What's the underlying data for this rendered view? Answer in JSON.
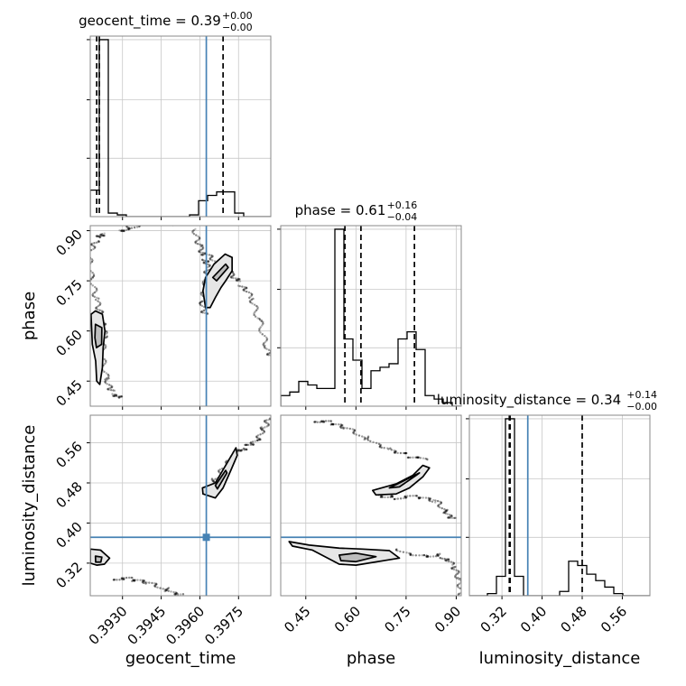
{
  "chart_data": {
    "type": "corner",
    "parameters": [
      "geocent_time",
      "phase",
      "luminosity_distance"
    ],
    "titles": [
      {
        "parameter": "geocent_time",
        "prefix": "geocent_time = 0.39",
        "plus": "+0.00",
        "minus": "−0.00"
      },
      {
        "parameter": "phase",
        "prefix": "phase = 0.61",
        "plus": "+0.16",
        "minus": "−0.04"
      },
      {
        "parameter": "luminosity_distance",
        "prefix": "luminosity_distance = 0.34",
        "plus": "+0.14",
        "minus": "−0.00"
      }
    ],
    "ranges": {
      "geocent_time": [
        0.39175,
        0.39875
      ],
      "phase": [
        0.375,
        0.915
      ],
      "luminosity_distance": [
        0.255,
        0.615
      ]
    },
    "ticks": {
      "geocent_time": [
        0.393,
        0.3945,
        0.396,
        0.3975
      ],
      "phase": [
        0.45,
        0.6,
        0.75,
        0.9
      ],
      "luminosity_distance": [
        0.32,
        0.4,
        0.48,
        0.56
      ]
    },
    "tick_labels": {
      "geocent_time": [
        "0.3930",
        "0.3945",
        "0.3960",
        "0.3975"
      ],
      "phase": [
        "0.45",
        "0.60",
        "0.75",
        "0.90"
      ],
      "luminosity_distance": [
        "0.32",
        "0.40",
        "0.48",
        "0.56"
      ]
    },
    "truths": {
      "geocent_time": 0.39625,
      "phase": null,
      "luminosity_distance": 0.3715
    },
    "quantiles": {
      "geocent_time": [
        0.392,
        0.3921,
        0.3969
      ],
      "phase": [
        0.567,
        0.615,
        0.775
      ],
      "luminosity_distance": [
        0.3347,
        0.3362,
        0.48
      ]
    },
    "histograms": {
      "geocent_time": {
        "edges": [
          0.39175,
          0.3921,
          0.39245,
          0.3928,
          0.39315,
          0.3935,
          0.39385,
          0.3942,
          0.39455,
          0.3949,
          0.39525,
          0.3956,
          0.39595,
          0.3963,
          0.39665,
          0.397,
          0.39735,
          0.3977,
          0.39805,
          0.3984,
          0.39875
        ],
        "counts": [
          0.15,
          1.0,
          0.02,
          0.01,
          0,
          0,
          0,
          0,
          0,
          0,
          0,
          0.01,
          0.09,
          0.12,
          0.14,
          0.14,
          0.02,
          0,
          0,
          0
        ]
      },
      "phase": {
        "edges": [
          0.375,
          0.402,
          0.429,
          0.456,
          0.483,
          0.51,
          0.537,
          0.564,
          0.591,
          0.618,
          0.645,
          0.672,
          0.699,
          0.726,
          0.753,
          0.78,
          0.807,
          0.834,
          0.861,
          0.888,
          0.915
        ],
        "counts": [
          0.06,
          0.08,
          0.14,
          0.12,
          0.1,
          0.1,
          1.0,
          0.38,
          0.26,
          0.1,
          0.2,
          0.22,
          0.24,
          0.38,
          0.42,
          0.32,
          0.06,
          0.04,
          0.02,
          0
        ]
      },
      "luminosity_distance": {
        "edges": [
          0.255,
          0.273,
          0.291,
          0.309,
          0.327,
          0.345,
          0.363,
          0.381,
          0.399,
          0.417,
          0.435,
          0.453,
          0.471,
          0.489,
          0.507,
          0.525,
          0.543,
          0.561,
          0.579,
          0.597,
          0.615
        ],
        "counts": [
          0,
          0,
          0.01,
          0.09,
          0.82,
          0.09,
          0,
          0,
          0,
          0,
          0.02,
          0.16,
          0.14,
          0.1,
          0.07,
          0.04,
          0.01,
          0,
          0,
          0
        ]
      }
    },
    "contours": {
      "phase_vs_geocent_time": [
        {
          "level": "outer",
          "points": [
            [
              0.39178,
              0.65
            ],
            [
              0.39195,
              0.66
            ],
            [
              0.39222,
              0.65
            ],
            [
              0.39232,
              0.6
            ],
            [
              0.39225,
              0.55
            ],
            [
              0.39222,
              0.49
            ],
            [
              0.39212,
              0.44
            ],
            [
              0.392,
              0.45
            ],
            [
              0.39196,
              0.51
            ],
            [
              0.39183,
              0.56
            ]
          ]
        },
        {
          "level": "inner",
          "points": [
            [
              0.39195,
              0.62
            ],
            [
              0.3922,
              0.61
            ],
            [
              0.39219,
              0.56
            ],
            [
              0.39199,
              0.55
            ],
            [
              0.39193,
              0.58
            ]
          ]
        },
        {
          "level": "outer",
          "points": [
            [
              0.39612,
              0.72
            ],
            [
              0.39622,
              0.76
            ],
            [
              0.39655,
              0.8
            ],
            [
              0.39698,
              0.83
            ],
            [
              0.39725,
              0.82
            ],
            [
              0.39725,
              0.78
            ],
            [
              0.397,
              0.75
            ],
            [
              0.39682,
              0.73
            ],
            [
              0.3966,
              0.7
            ],
            [
              0.3964,
              0.67
            ],
            [
              0.39622,
              0.67
            ]
          ]
        },
        {
          "level": "inner",
          "points": [
            [
              0.3965,
              0.76
            ],
            [
              0.397,
              0.8
            ],
            [
              0.3971,
              0.79
            ],
            [
              0.39665,
              0.75
            ]
          ]
        }
      ],
      "luminosity_distance_vs_geocent_time": [
        {
          "level": "outer",
          "points": [
            [
              0.39175,
              0.348
            ],
            [
              0.39215,
              0.346
            ],
            [
              0.3925,
              0.33
            ],
            [
              0.3923,
              0.318
            ],
            [
              0.392,
              0.316
            ],
            [
              0.39175,
              0.32
            ]
          ]
        },
        {
          "level": "inner",
          "points": [
            [
              0.39195,
              0.334
            ],
            [
              0.3922,
              0.332
            ],
            [
              0.39216,
              0.322
            ],
            [
              0.39196,
              0.322
            ]
          ]
        },
        {
          "level": "outer",
          "points": [
            [
              0.3961,
              0.47
            ],
            [
              0.3966,
              0.48
            ],
            [
              0.397,
              0.515
            ],
            [
              0.3974,
              0.55
            ],
            [
              0.39745,
              0.535
            ],
            [
              0.3972,
              0.505
            ],
            [
              0.3969,
              0.47
            ],
            [
              0.3966,
              0.45
            ],
            [
              0.39612,
              0.458
            ]
          ]
        },
        {
          "level": "inner",
          "points": [
            [
              0.3966,
              0.475
            ],
            [
              0.397,
              0.505
            ],
            [
              0.39705,
              0.5
            ],
            [
              0.39668,
              0.468
            ]
          ]
        }
      ],
      "luminosity_distance_vs_phase": [
        {
          "level": "outer",
          "points": [
            [
              0.4,
              0.363
            ],
            [
              0.46,
              0.356
            ],
            [
              0.55,
              0.35
            ],
            [
              0.62,
              0.348
            ],
            [
              0.7,
              0.345
            ],
            [
              0.73,
              0.33
            ],
            [
              0.6,
              0.316
            ],
            [
              0.55,
              0.318
            ],
            [
              0.47,
              0.346
            ],
            [
              0.41,
              0.354
            ]
          ]
        },
        {
          "level": "inner",
          "points": [
            [
              0.55,
              0.336
            ],
            [
              0.6,
              0.34
            ],
            [
              0.66,
              0.333
            ],
            [
              0.6,
              0.323
            ],
            [
              0.555,
              0.325
            ]
          ]
        },
        {
          "level": "outer",
          "points": [
            [
              0.65,
              0.465
            ],
            [
              0.72,
              0.478
            ],
            [
              0.77,
              0.495
            ],
            [
              0.8,
              0.515
            ],
            [
              0.82,
              0.51
            ],
            [
              0.8,
              0.492
            ],
            [
              0.76,
              0.47
            ],
            [
              0.72,
              0.458
            ],
            [
              0.66,
              0.456
            ]
          ]
        },
        {
          "level": "inner",
          "points": [
            [
              0.7,
              0.47
            ],
            [
              0.76,
              0.49
            ],
            [
              0.79,
              0.5
            ],
            [
              0.78,
              0.495
            ],
            [
              0.73,
              0.472
            ]
          ]
        }
      ]
    },
    "scatter_paths": {
      "phase_vs_geocent_time": [
        [
          [
            0.3923,
            0.9
          ],
          [
            0.392,
            0.87
          ],
          [
            0.3917,
            0.82
          ],
          [
            0.3918,
            0.76
          ],
          [
            0.392,
            0.7
          ],
          [
            0.3922,
            0.64
          ],
          [
            0.3923,
            0.58
          ],
          [
            0.3922,
            0.52
          ],
          [
            0.3924,
            0.46
          ],
          [
            0.3926,
            0.42
          ],
          [
            0.393,
            0.39
          ]
        ],
        [
          [
            0.3929,
            0.905
          ],
          [
            0.3933,
            0.913
          ],
          [
            0.394,
            0.917
          ],
          [
            0.395,
            0.915
          ]
        ],
        [
          [
            0.3958,
            0.9
          ],
          [
            0.396,
            0.86
          ],
          [
            0.3962,
            0.82
          ],
          [
            0.3963,
            0.78
          ],
          [
            0.3962,
            0.73
          ],
          [
            0.3961,
            0.69
          ],
          [
            0.3962,
            0.65
          ]
        ],
        [
          [
            0.3963,
            0.82
          ],
          [
            0.3968,
            0.8
          ],
          [
            0.3972,
            0.78
          ],
          [
            0.3976,
            0.74
          ],
          [
            0.398,
            0.69
          ],
          [
            0.3983,
            0.63
          ],
          [
            0.3986,
            0.56
          ],
          [
            0.3988,
            0.52
          ]
        ]
      ],
      "luminosity_distance_vs_geocent_time": [
        [
          [
            0.3927,
            0.293
          ],
          [
            0.3933,
            0.285
          ],
          [
            0.394,
            0.276
          ],
          [
            0.3947,
            0.268
          ],
          [
            0.3953,
            0.262
          ]
        ],
        [
          [
            0.3963,
            0.468
          ],
          [
            0.3966,
            0.488
          ],
          [
            0.397,
            0.51
          ],
          [
            0.3974,
            0.535
          ],
          [
            0.3978,
            0.555
          ],
          [
            0.3982,
            0.57
          ],
          [
            0.3985,
            0.588
          ],
          [
            0.3987,
            0.605
          ]
        ]
      ],
      "luminosity_distance_vs_phase": [
        [
          [
            0.48,
            0.608
          ],
          [
            0.52,
            0.597
          ],
          [
            0.57,
            0.585
          ],
          [
            0.63,
            0.57
          ],
          [
            0.7,
            0.552
          ],
          [
            0.76,
            0.535
          ],
          [
            0.81,
            0.52
          ]
        ],
        [
          [
            0.66,
            0.46
          ],
          [
            0.72,
            0.453
          ],
          [
            0.78,
            0.448
          ],
          [
            0.84,
            0.44
          ],
          [
            0.87,
            0.425
          ],
          [
            0.89,
            0.412
          ]
        ],
        [
          [
            0.72,
            0.345
          ],
          [
            0.8,
            0.34
          ],
          [
            0.86,
            0.335
          ],
          [
            0.89,
            0.31
          ],
          [
            0.91,
            0.285
          ],
          [
            0.915,
            0.262
          ]
        ]
      ]
    },
    "truth_marker": {
      "x_parameter": "geocent_time",
      "y_parameter": "luminosity_distance",
      "x": 0.39625,
      "y": 0.3715
    }
  }
}
